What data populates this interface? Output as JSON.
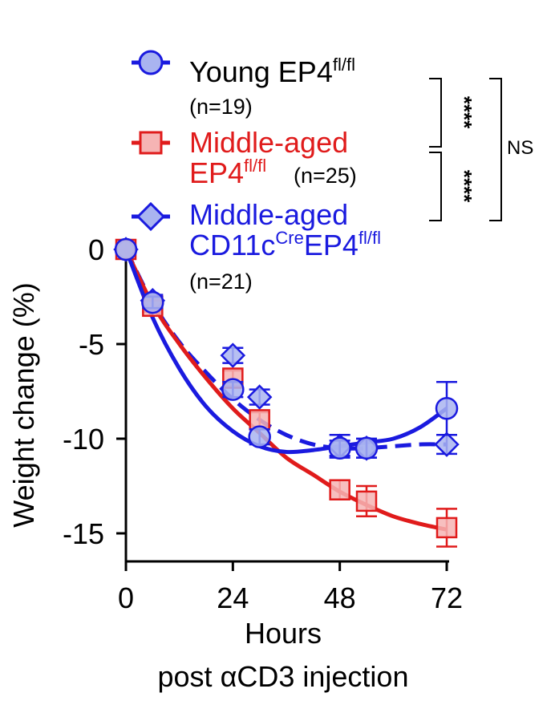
{
  "chart_data": {
    "type": "line",
    "xlabel": "Hours",
    "xlabel2": "post αCD3 injection",
    "ylabel": "Weight change (%)",
    "xlim": [
      0,
      72
    ],
    "ylim": [
      -16.5,
      0.5
    ],
    "xticks": [
      0,
      24,
      48,
      72
    ],
    "yticks": [
      0,
      -5,
      -10,
      -15
    ],
    "grid": false,
    "legend_position": "top",
    "series": [
      {
        "name": "Young EP4fl/fl",
        "name_main": "Young EP4",
        "name_sup": "fl/fl",
        "n_label": "(n=19)",
        "color": "#1a1adf",
        "fill": "#a9b4f0",
        "marker": "circle",
        "line_style": "solid",
        "x": [
          0,
          6,
          24,
          30,
          48,
          54,
          72
        ],
        "y": [
          0,
          -2.8,
          -7.4,
          -9.9,
          -10.5,
          -10.5,
          -8.4
        ],
        "err": [
          0.2,
          0.3,
          0.4,
          0.4,
          0.4,
          0.5,
          1.4
        ],
        "fit_x": [
          0,
          6,
          12,
          18,
          24,
          30,
          36,
          42,
          48,
          54,
          60,
          66,
          72
        ],
        "fit_y": [
          0,
          -3.6,
          -6.3,
          -8.3,
          -9.6,
          -10.4,
          -10.7,
          -10.6,
          -10.4,
          -10.2,
          -10.0,
          -9.4,
          -8.4
        ]
      },
      {
        "name": "Middle-aged EP4fl/fl",
        "name_line1": "Middle-aged",
        "name_line2_main": "EP4",
        "name_sup": "fl/fl",
        "n_label": "(n=25)",
        "color": "#e01b1b",
        "fill": "#f6b4b4",
        "marker": "square",
        "line_style": "solid",
        "x": [
          0,
          6,
          24,
          30,
          48,
          54,
          72
        ],
        "y": [
          0,
          -3.0,
          -6.8,
          -9.0,
          -12.7,
          -13.3,
          -14.7
        ],
        "err": [
          0.2,
          0.3,
          0.4,
          0.4,
          0.5,
          0.8,
          1.0
        ],
        "fit_x": [
          0,
          6,
          12,
          18,
          24,
          30,
          36,
          42,
          48,
          54,
          60,
          66,
          72
        ],
        "fit_y": [
          0,
          -2.9,
          -5.0,
          -6.8,
          -8.4,
          -9.7,
          -11.0,
          -11.9,
          -12.8,
          -13.5,
          -14.1,
          -14.5,
          -14.8
        ]
      },
      {
        "name": "Middle-aged CD11cCreEP4fl/fl",
        "name_line1": "Middle-aged",
        "name_line2_a": "CD11c",
        "name_sup_a": "Cre",
        "name_line2_b": "EP4",
        "name_sup_b": "fl/fl",
        "n_label": "(n=21)",
        "color": "#1a1adf",
        "fill": "#a9b4f0",
        "marker": "diamond",
        "line_style": "dashed",
        "x": [
          0,
          6,
          24,
          30,
          48,
          54,
          72
        ],
        "y": [
          0,
          -2.7,
          -5.6,
          -7.8,
          -10.4,
          -10.5,
          -10.3
        ],
        "err": [
          0.2,
          0.3,
          0.4,
          0.4,
          0.6,
          0.5,
          0.5
        ],
        "fit_x": [
          0,
          6,
          12,
          18,
          24,
          30,
          36,
          42,
          48,
          54,
          60,
          66,
          72
        ],
        "fit_y": [
          0,
          -2.8,
          -4.9,
          -6.5,
          -7.9,
          -9.0,
          -9.8,
          -10.3,
          -10.5,
          -10.5,
          -10.4,
          -10.3,
          -10.3
        ]
      }
    ],
    "annotations": {
      "sig_1": "****",
      "sig_2": "****",
      "ns": "NS"
    }
  }
}
